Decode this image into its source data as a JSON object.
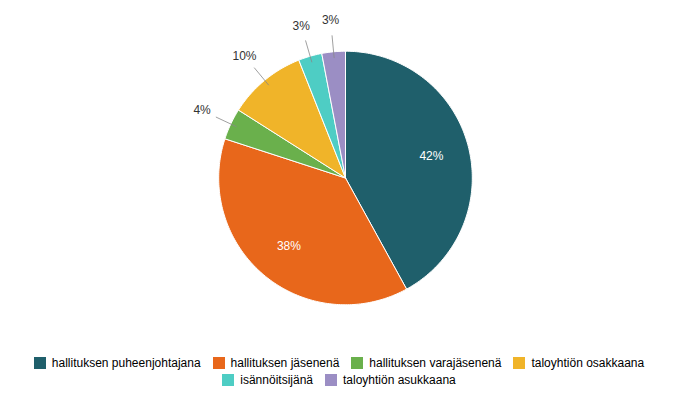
{
  "chart_data": {
    "type": "pie",
    "categories": [
      "hallituksen puheenjohtajana",
      "hallituksen jäsenenä",
      "hallituksen varajäsenenä",
      "taloyhtiön osakkaana",
      "isännöitsijänä",
      "taloyhtiön asukkaana"
    ],
    "values": [
      42,
      38,
      4,
      10,
      3,
      3
    ],
    "value_labels": [
      "42%",
      "38%",
      "4%",
      "10%",
      "3%",
      "3%"
    ],
    "colors": [
      "#1f5f6b",
      "#e8671b",
      "#6ab04c",
      "#f0b429",
      "#4ecdc4",
      "#9b8ec4"
    ],
    "data_labels": true,
    "legend": "bottom"
  }
}
